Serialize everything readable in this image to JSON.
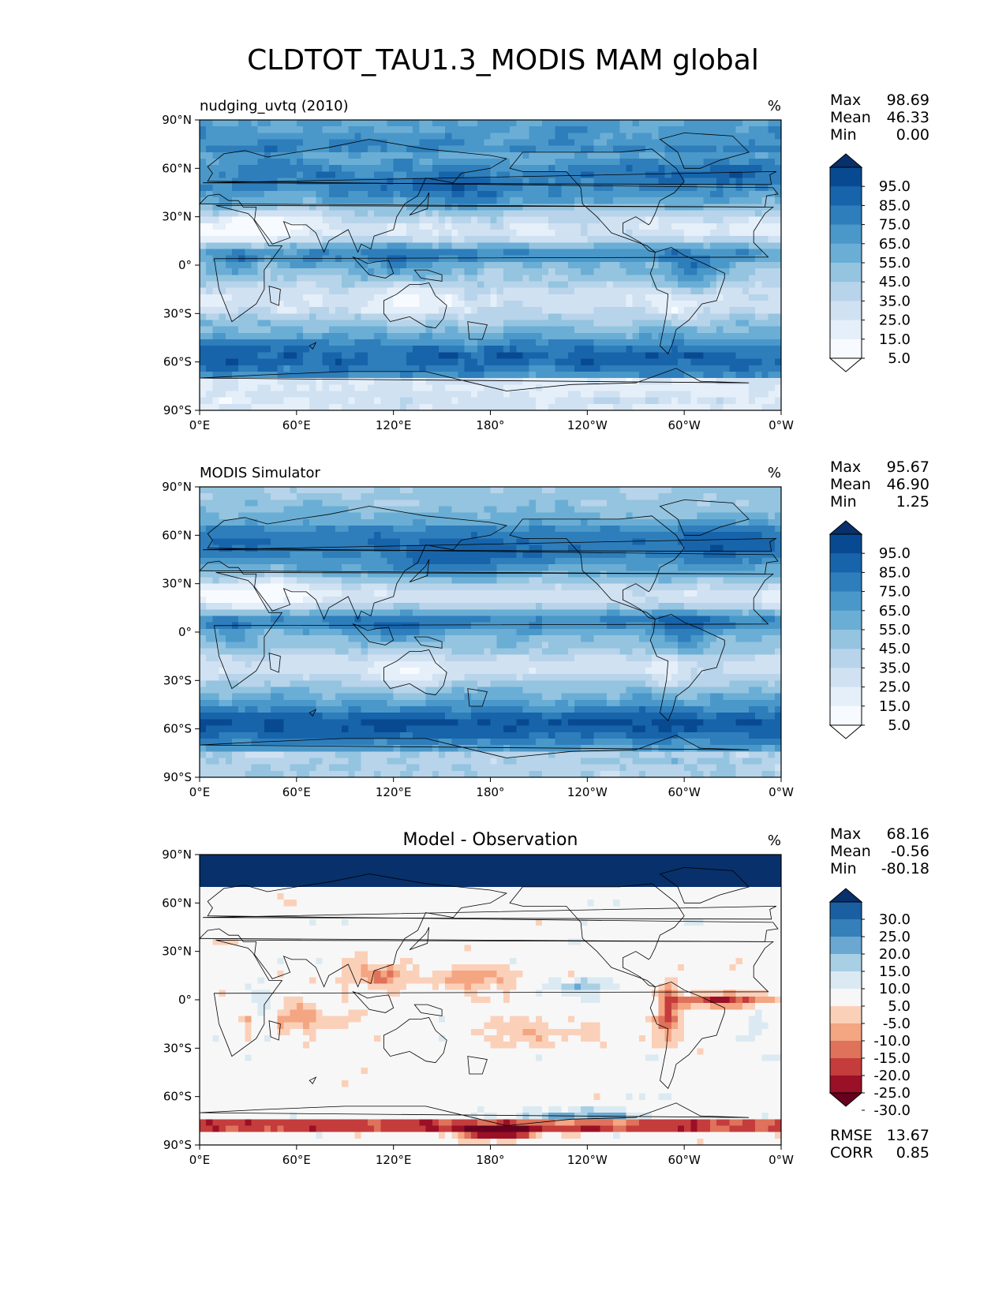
{
  "figure": {
    "title": "CLDTOT_TAU1.3_MODIS MAM global"
  },
  "colors": {
    "blues": [
      "#ffffff",
      "#f7fbff",
      "#e4eff9",
      "#d0e1f2",
      "#b7d4ea",
      "#94c4df",
      "#6aaed6",
      "#4a98c9",
      "#2e7ebc",
      "#1764ab",
      "#084a91",
      "#08306b"
    ],
    "diverging": [
      "#67001f",
      "#9a1026",
      "#c43c3c",
      "#de725b",
      "#f4a582",
      "#fbd0b9",
      "#f7f7f7",
      "#dbeaf2",
      "#a9cfe5",
      "#6aa8d1",
      "#3580b9",
      "#1a5fa2",
      "#08306b"
    ],
    "land_outline": "#000000"
  },
  "chart_data": [
    {
      "type": "heatmap",
      "panel": "test",
      "title_left": "nudging_uvtq (2010)",
      "units": "%",
      "stats": {
        "max_label": "Max",
        "max": "98.69",
        "mean_label": "Mean",
        "mean": "46.33",
        "min_label": "Min",
        "min": "0.00"
      },
      "x_ticks": [
        "0°E",
        "60°E",
        "120°E",
        "180°",
        "120°W",
        "60°W",
        "0°W"
      ],
      "y_ticks": [
        "90°N",
        "60°N",
        "30°N",
        "0°",
        "30°S",
        "60°S",
        "90°S"
      ],
      "xlim": [
        0,
        360
      ],
      "ylim": [
        -90,
        90
      ],
      "colorbar_levels": [
        0,
        5,
        15,
        25,
        35,
        45,
        55,
        65,
        75,
        85,
        95,
        100
      ],
      "colorbar_labels": [
        "95.0",
        "85.0",
        "75.0",
        "65.0",
        "55.0",
        "45.0",
        "35.0",
        "25.0",
        "15.0",
        "5.0"
      ]
    },
    {
      "type": "heatmap",
      "panel": "reference",
      "title_left": "MODIS Simulator",
      "units": "%",
      "stats": {
        "max_label": "Max",
        "max": "95.67",
        "mean_label": "Mean",
        "mean": "46.90",
        "min_label": "Min",
        "min": "1.25"
      },
      "x_ticks": [
        "0°E",
        "60°E",
        "120°E",
        "180°",
        "120°W",
        "60°W",
        "0°W"
      ],
      "y_ticks": [
        "90°N",
        "60°N",
        "30°N",
        "0°",
        "30°S",
        "60°S",
        "90°S"
      ],
      "xlim": [
        0,
        360
      ],
      "ylim": [
        -90,
        90
      ],
      "colorbar_levels": [
        0,
        5,
        15,
        25,
        35,
        45,
        55,
        65,
        75,
        85,
        95,
        100
      ],
      "colorbar_labels": [
        "95.0",
        "85.0",
        "75.0",
        "65.0",
        "55.0",
        "45.0",
        "35.0",
        "25.0",
        "15.0",
        "5.0"
      ]
    },
    {
      "type": "heatmap",
      "panel": "difference",
      "title_center": "Model - Observation",
      "units": "%",
      "stats": {
        "max_label": "Max",
        "max": "68.16",
        "mean_label": "Mean",
        "mean": "-0.56",
        "min_label": "Min",
        "min": "-80.18"
      },
      "rmse_label": "RMSE",
      "rmse": "13.67",
      "corr_label": "CORR",
      "corr": "0.85",
      "x_ticks": [
        "0°E",
        "60°E",
        "120°E",
        "180°",
        "120°W",
        "60°W",
        "0°W"
      ],
      "y_ticks": [
        "90°N",
        "60°N",
        "30°N",
        "0°",
        "30°S",
        "60°S",
        "90°S"
      ],
      "xlim": [
        0,
        360
      ],
      "ylim": [
        -90,
        90
      ],
      "colorbar_levels": [
        -30,
        -25,
        -20,
        -15,
        -10,
        -5,
        5,
        10,
        15,
        20,
        25,
        30
      ],
      "colorbar_labels": [
        "30.0",
        "25.0",
        "20.0",
        "15.0",
        "10.0",
        "5.0",
        "-5.0",
        "-10.0",
        "-15.0",
        "-20.0",
        "-25.0",
        "-30.0"
      ]
    }
  ]
}
